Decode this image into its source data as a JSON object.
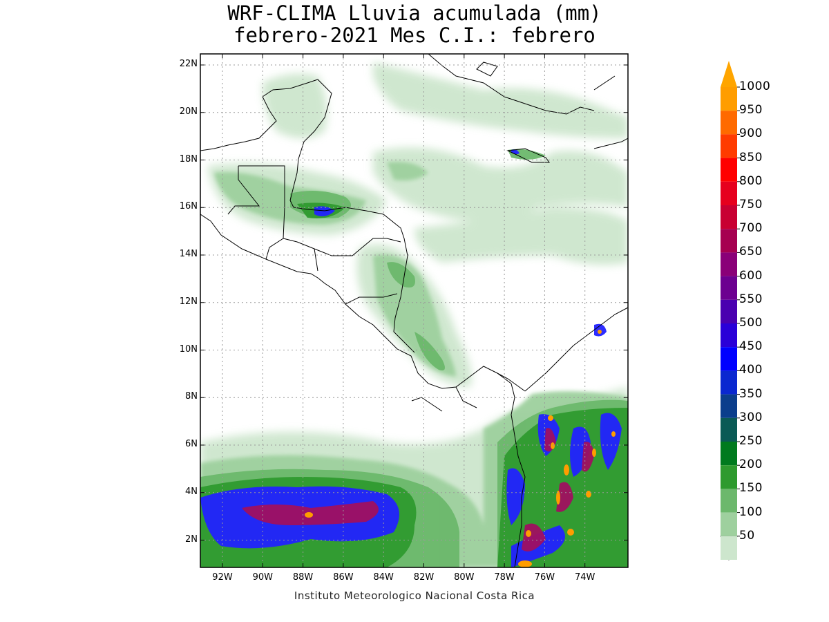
{
  "title_line1": "WRF-CLIMA Lluvia acumulada (mm)",
  "title_line2": "febrero-2021 Mes C.I.: febrero",
  "footer": "Instituto Meteorologico Nacional Costa Rica",
  "lat_ticks": [
    "22N",
    "20N",
    "18N",
    "16N",
    "14N",
    "12N",
    "10N",
    "8N",
    "6N",
    "4N",
    "2N"
  ],
  "lon_ticks": [
    "92W",
    "90W",
    "88W",
    "86W",
    "84W",
    "82W",
    "80W",
    "78W",
    "76W",
    "74W"
  ],
  "colorbar": {
    "labels": [
      "1000",
      "950",
      "900",
      "850",
      "800",
      "750",
      "700",
      "650",
      "600",
      "550",
      "500",
      "450",
      "400",
      "350",
      "300",
      "250",
      "200",
      "150",
      "100",
      "50"
    ],
    "colors": [
      "#ff9d00",
      "#ff6a00",
      "#ff3b00",
      "#ff0000",
      "#e6001e",
      "#c80032",
      "#a60050",
      "#8a0078",
      "#6c0090",
      "#4a00b0",
      "#2a00d8",
      "#0000ff",
      "#0a28d0",
      "#0b3e8c",
      "#0a5a55",
      "#007a1e",
      "#2e9a2e",
      "#6cb86c",
      "#9ed09e",
      "#cde6cd"
    ],
    "overflow_color": "#ffa500"
  },
  "colors": {
    "land_line": "#000000",
    "grid": "#9a9a9a",
    "rain_light": "#cde6cd",
    "rain_med": "#9ed09e",
    "rain_green": "#6cb86c",
    "rain_dark": "#2e9a2e",
    "rain_blue": "#2222ff",
    "rain_purple": "#a01060",
    "rain_orange": "#ff9d00"
  }
}
